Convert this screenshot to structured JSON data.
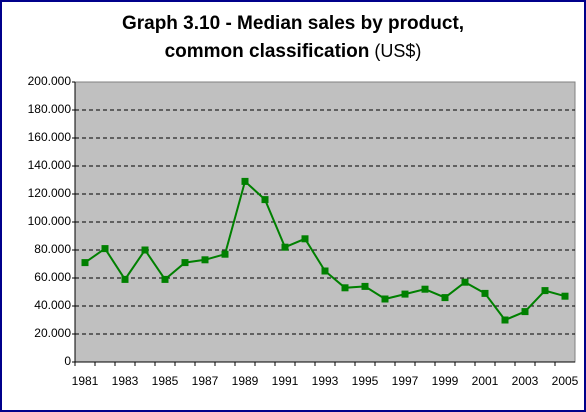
{
  "chart_data": {
    "type": "line",
    "title": [
      "Graph 3.10 - Median sales by product,",
      "common classification"
    ],
    "title_unit": "(US$)",
    "categories": [
      "1981",
      null,
      "1983",
      null,
      "1985",
      null,
      "1987",
      null,
      "1989",
      null,
      "1991",
      null,
      "1993",
      null,
      "1995",
      null,
      "1997",
      null,
      "1999",
      null,
      "2001",
      null,
      "2003",
      null,
      "2005"
    ],
    "series": [
      {
        "name": "Median sales",
        "color": "#008000",
        "values": [
          71000,
          81000,
          59000,
          80000,
          59000,
          71000,
          73000,
          77000,
          129000,
          116000,
          82000,
          88000,
          65000,
          53000,
          54000,
          45000,
          48500,
          52000,
          46000,
          57000,
          49000,
          30000,
          36000,
          51000,
          47000
        ]
      }
    ],
    "ylim": [
      0,
      200000
    ],
    "yticks": [
      0,
      {
        "value": 20000,
        "label": "20.000"
      },
      {
        "value": 40000,
        "label": "40.000"
      },
      {
        "value": 60000,
        "label": "60.000"
      },
      {
        "value": 80000,
        "label": "80.000"
      },
      {
        "value": 100000,
        "label": "100.000"
      },
      {
        "value": 120000,
        "label": "120.000"
      },
      {
        "value": 140000,
        "label": "140.000"
      },
      {
        "value": 160000,
        "label": "160.000"
      },
      {
        "value": 180000,
        "label": "180.000"
      },
      {
        "value": 200000,
        "label": "200.000"
      }
    ],
    "grid": true
  }
}
